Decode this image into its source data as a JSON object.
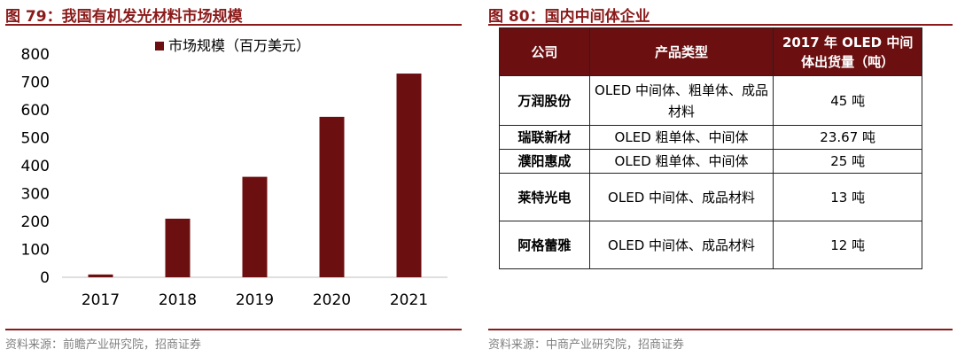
{
  "left": {
    "title": "图 79：我国有机发光材料市场规模",
    "source": "资料来源：前瞻产业研究院，招商证券"
  },
  "right": {
    "title": "图 80：国内中间体企业",
    "source": "资料来源：中商产业研究院，招商证券",
    "headers": [
      "公司",
      "产品类型",
      "2017 年 OLED 中间体出货量（吨）"
    ],
    "rows": [
      [
        "万润股份",
        "OLED 中间体、粗单体、成品材料",
        "45 吨"
      ],
      [
        "瑞联新材",
        "OLED 粗单体、中间体",
        "23.67 吨"
      ],
      [
        "濮阳惠成",
        "OLED 粗单体、中间体",
        "25 吨"
      ],
      [
        "莱特光电",
        "OLED 中间体、成品材料",
        "13 吨"
      ],
      [
        "阿格蕾雅",
        "OLED 中间体、成品材料",
        "12 吨"
      ]
    ]
  },
  "colors": {
    "accent": "#8b1a1a",
    "bar": "#6b0f10",
    "header_bg": "#6b0f10"
  },
  "chart_data": {
    "type": "bar",
    "categories": [
      "2017",
      "2018",
      "2019",
      "2020",
      "2021"
    ],
    "series": [
      {
        "name": "市场规模（百万美元）",
        "values": [
          10,
          210,
          360,
          575,
          730
        ]
      }
    ],
    "ylim": [
      0,
      800
    ],
    "yticks": [
      0,
      100,
      200,
      300,
      400,
      500,
      600,
      700,
      800
    ],
    "title": "",
    "xlabel": "",
    "ylabel": "",
    "legend": "top-center",
    "grid": false
  }
}
